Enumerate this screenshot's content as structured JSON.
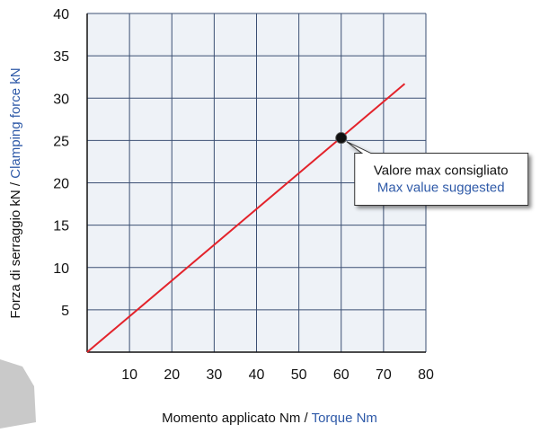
{
  "chart_data": {
    "type": "line",
    "xlabel": "Momento applicato Nm /",
    "xlabel_en": "Torque Nm",
    "ylabel": "Forza di serraggio kN  /",
    "ylabel_en": "Clamping force kN",
    "series": [
      {
        "color": "#e3232b",
        "x": [
          0,
          75
        ],
        "values": [
          0,
          31.7
        ]
      }
    ],
    "xlim": [
      0,
      80
    ],
    "xticks": [
      10,
      20,
      30,
      40,
      50,
      60,
      70,
      80
    ],
    "ylim": [
      0,
      40
    ],
    "yticks": [
      5,
      10,
      15,
      20,
      25,
      30,
      35,
      40
    ],
    "grid": true,
    "annotation": {
      "text": "Valore max consigliato",
      "text_en": "Max value suggested",
      "x": 60,
      "y": 25.3
    }
  }
}
